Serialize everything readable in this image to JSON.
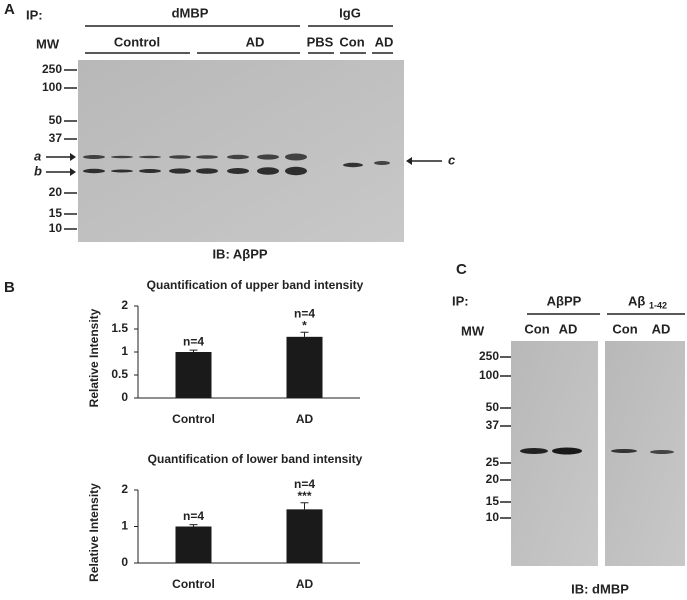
{
  "panel_a": {
    "label": "A",
    "ip": "IP:",
    "dmbp": "dMBP",
    "igg": "IgG",
    "mw": "MW",
    "control": "Control",
    "ad": "AD",
    "pbs": "PBS",
    "con": "Con",
    "ad2": "AD",
    "mw_labels": [
      "250",
      "100",
      "50",
      "37",
      "20",
      "15",
      "10"
    ],
    "band_a": "a",
    "band_b": "b",
    "band_c": "c",
    "ib": "IB: AβPP"
  },
  "panel_b": {
    "label": "B"
  },
  "chart_data": [
    {
      "type": "bar",
      "title": "Quantification of upper band intensity",
      "ylabel": "Relative Intensity",
      "categories": [
        "Control",
        "AD"
      ],
      "values": [
        1,
        1.33
      ],
      "errors": [
        0.04,
        0.1
      ],
      "n_labels": [
        "n=4",
        "n=4"
      ],
      "significance": [
        null,
        "*"
      ],
      "color": "#1a1a1a",
      "ylim": [
        0,
        2
      ],
      "yticks": [
        0,
        0.5,
        1,
        1.5,
        2
      ]
    },
    {
      "type": "bar",
      "title": "Quantification of lower band intensity",
      "ylabel": "Relative Intensity",
      "categories": [
        "Control",
        "AD"
      ],
      "values": [
        1,
        1.47
      ],
      "errors": [
        0.05,
        0.18
      ],
      "n_labels": [
        "n=4",
        "n=4"
      ],
      "significance": [
        null,
        "***"
      ],
      "color": "#1a1a1a",
      "ylim": [
        0,
        2
      ],
      "yticks": [
        0,
        1,
        2
      ]
    }
  ],
  "panel_c": {
    "label": "C",
    "ip": "IP:",
    "mw": "MW",
    "app": "AβPP",
    "abeta": "Aβ",
    "abeta_sub": "1-42",
    "con1": "Con",
    "ad1": "AD",
    "con2": "Con",
    "ad2": "AD",
    "mw_labels": [
      "250",
      "100",
      "50",
      "37",
      "25",
      "20",
      "15",
      "10"
    ],
    "ib": "IB: dMBP"
  }
}
